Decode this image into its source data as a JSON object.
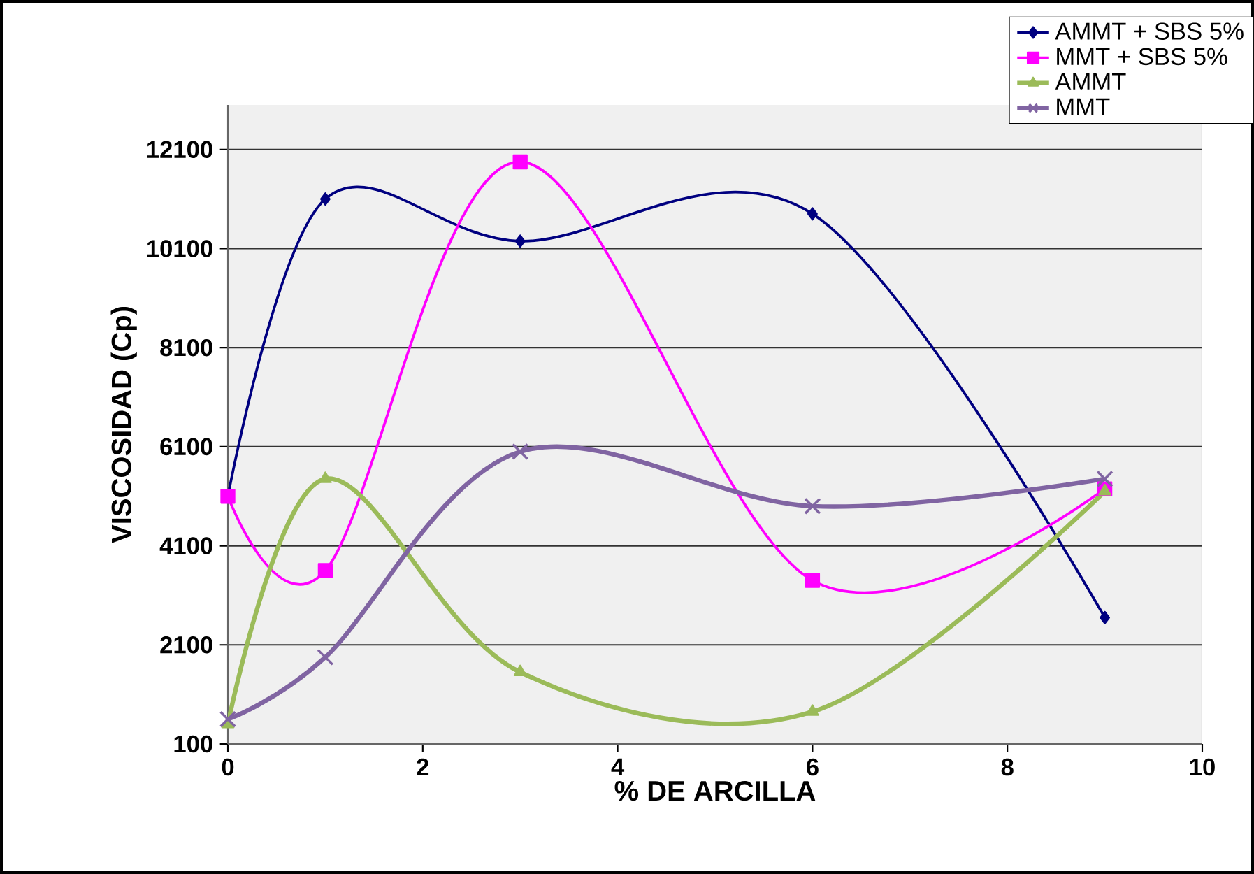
{
  "chart_data": {
    "type": "line",
    "xlabel": "% DE ARCILLA",
    "ylabel": "VISCOSIDAD (Cp)",
    "x": [
      0,
      1,
      3,
      6,
      9
    ],
    "series": [
      {
        "name": "AMMT + SBS 5%",
        "color": "#000080",
        "marker": "diamond",
        "values": [
          5100,
          11100,
          10250,
          10800,
          2650
        ]
      },
      {
        "name": "MMT + SBS 5%",
        "color": "#ff00ff",
        "marker": "square",
        "values": [
          5100,
          3600,
          11850,
          3400,
          5250
        ]
      },
      {
        "name": "AMMT",
        "color": "#9bbb59",
        "marker": "triangle",
        "values": [
          500,
          5450,
          1550,
          750,
          5200
        ]
      },
      {
        "name": "MMT",
        "color": "#8064a2",
        "marker": "cross",
        "values": [
          600,
          1850,
          6000,
          4900,
          5450
        ]
      }
    ],
    "xlim": [
      0,
      10
    ],
    "xticks": [
      0,
      2,
      4,
      6,
      8,
      10
    ],
    "ylim": [
      100,
      13000
    ],
    "yticks": [
      100,
      2100,
      4100,
      6100,
      8100,
      10100,
      12100
    ],
    "grid": "y",
    "legend": "top right",
    "line_style": "solid"
  }
}
